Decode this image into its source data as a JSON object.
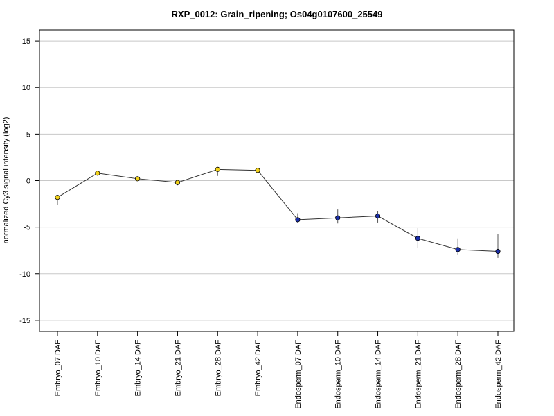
{
  "chart_data": {
    "type": "line",
    "title": "RXP_0012: Grain_ripening; Os04g0107600_25549",
    "xlabel": "",
    "ylabel": "normalized Cy3 signal intensity (log2)",
    "ylim": [
      -16.2,
      16.2
    ],
    "yticks": [
      -15,
      -10,
      -5,
      0,
      5,
      10,
      15
    ],
    "grid": true,
    "categories": [
      "Embryo_07 DAF",
      "Embryo_10 DAF",
      "Embryo_14 DAF",
      "Embryo_21 DAF",
      "Embryo_28 DAF",
      "Embryo_42 DAF",
      "Endosperm_07 DAF",
      "Endosperm_10 DAF",
      "Endosperm_14 DAF",
      "Endosperm_21 DAF",
      "Endosperm_28 DAF",
      "Endosperm_42 DAF"
    ],
    "series": [
      {
        "values": [
          -1.8,
          0.8,
          0.2,
          -0.2,
          1.2,
          1.1,
          -4.2,
          -4.0,
          -3.8,
          -6.2,
          -7.4,
          -7.6
        ],
        "error_low": [
          -2.6,
          0.6,
          0.0,
          -0.5,
          0.5,
          0.8,
          -4.5,
          -4.6,
          -4.5,
          -7.2,
          -8.0,
          -8.3
        ],
        "error_high": [
          -1.6,
          1.0,
          0.4,
          0.0,
          1.4,
          1.3,
          -3.5,
          -3.1,
          -3.3,
          -5.1,
          -6.2,
          -5.7
        ],
        "point_colors": [
          "#f2d21b",
          "#f2d21b",
          "#f2d21b",
          "#f2d21b",
          "#f2d21b",
          "#f2d21b",
          "#1a2ea8",
          "#1a2ea8",
          "#1a2ea8",
          "#1a2ea8",
          "#1a2ea8",
          "#1a2ea8"
        ]
      }
    ],
    "line_color": "#333333",
    "grid_color": "#c8c8c8"
  }
}
